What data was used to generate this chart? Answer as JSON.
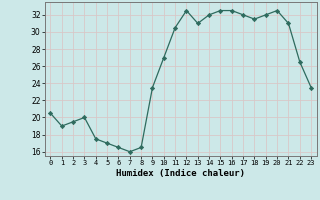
{
  "x": [
    0,
    1,
    2,
    3,
    4,
    5,
    6,
    7,
    8,
    9,
    10,
    11,
    12,
    13,
    14,
    15,
    16,
    17,
    18,
    19,
    20,
    21,
    22,
    23
  ],
  "y": [
    20.5,
    19.0,
    19.5,
    20.0,
    17.5,
    17.0,
    16.5,
    16.0,
    16.5,
    23.5,
    27.0,
    30.5,
    32.5,
    31.0,
    32.0,
    32.5,
    32.5,
    32.0,
    31.5,
    32.0,
    32.5,
    31.0,
    26.5,
    23.5
  ],
  "xlabel": "Humidex (Indice chaleur)",
  "xlim": [
    -0.5,
    23.5
  ],
  "ylim": [
    15.5,
    33.5
  ],
  "yticks": [
    16,
    18,
    20,
    22,
    24,
    26,
    28,
    30,
    32
  ],
  "xticks": [
    0,
    1,
    2,
    3,
    4,
    5,
    6,
    7,
    8,
    9,
    10,
    11,
    12,
    13,
    14,
    15,
    16,
    17,
    18,
    19,
    20,
    21,
    22,
    23
  ],
  "line_color": "#2e6b5e",
  "marker": "D",
  "marker_size": 2.2,
  "bg_color": "#cce8e8",
  "grid_color": "#b8d8d8"
}
